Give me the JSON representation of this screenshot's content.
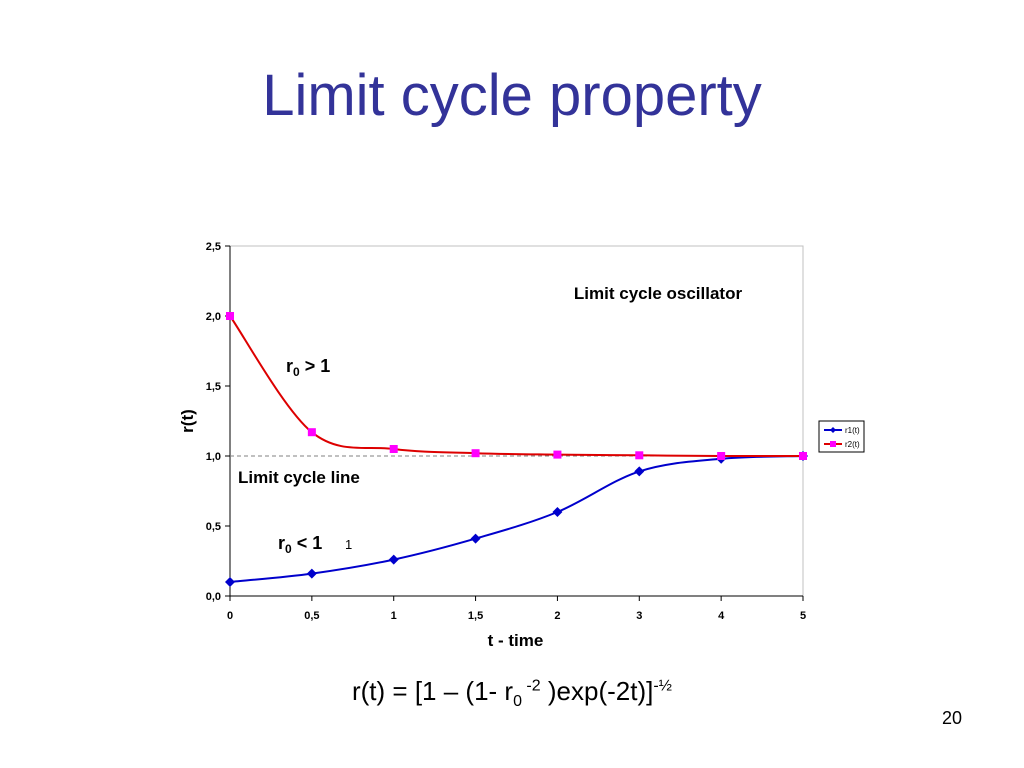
{
  "slide": {
    "title": "Limit cycle property",
    "page_number": "20",
    "formula": {
      "part1": "r(t) = [1 – (1- r",
      "sub": "0",
      "sup1": " -2",
      "part2": " )exp(-2t)]",
      "sup2": "-½"
    }
  },
  "chart_data": {
    "type": "line",
    "title": "",
    "xlabel": "t - time",
    "ylabel": "r(t)",
    "xlim": [
      0,
      5
    ],
    "ylim": [
      0,
      2.5
    ],
    "grid": false,
    "x_categories": [
      "0",
      "0,5",
      "1",
      "1,5",
      "2",
      "3",
      "4",
      "5"
    ],
    "y_ticks": [
      "0,0",
      "0,5",
      "1,0",
      "1,5",
      "2,0",
      "2,5"
    ],
    "legend_position": "right",
    "series": [
      {
        "name": "r1(t)",
        "color": "#0000cc",
        "marker": "diamond",
        "values": [
          0.1,
          0.16,
          0.26,
          0.41,
          0.6,
          0.89,
          0.98,
          1.0
        ]
      },
      {
        "name": "r2(t)",
        "color": "#dd0000",
        "marker_color": "#ff00ff",
        "marker": "square",
        "values": [
          2.0,
          1.17,
          1.05,
          1.02,
          1.01,
          1.005,
          1.0,
          1.0
        ]
      }
    ],
    "reference_line": {
      "label": "Limit cycle line",
      "y": 1.0,
      "style": "dashed"
    },
    "annotations": {
      "oscillator": "Limit cycle oscillator",
      "upper_r": "r",
      "upper_sub": "0",
      "upper_cond": " > 1",
      "lower_r": "r",
      "lower_sub": "0",
      "lower_cond": " < 1",
      "lower_small": "1"
    }
  }
}
